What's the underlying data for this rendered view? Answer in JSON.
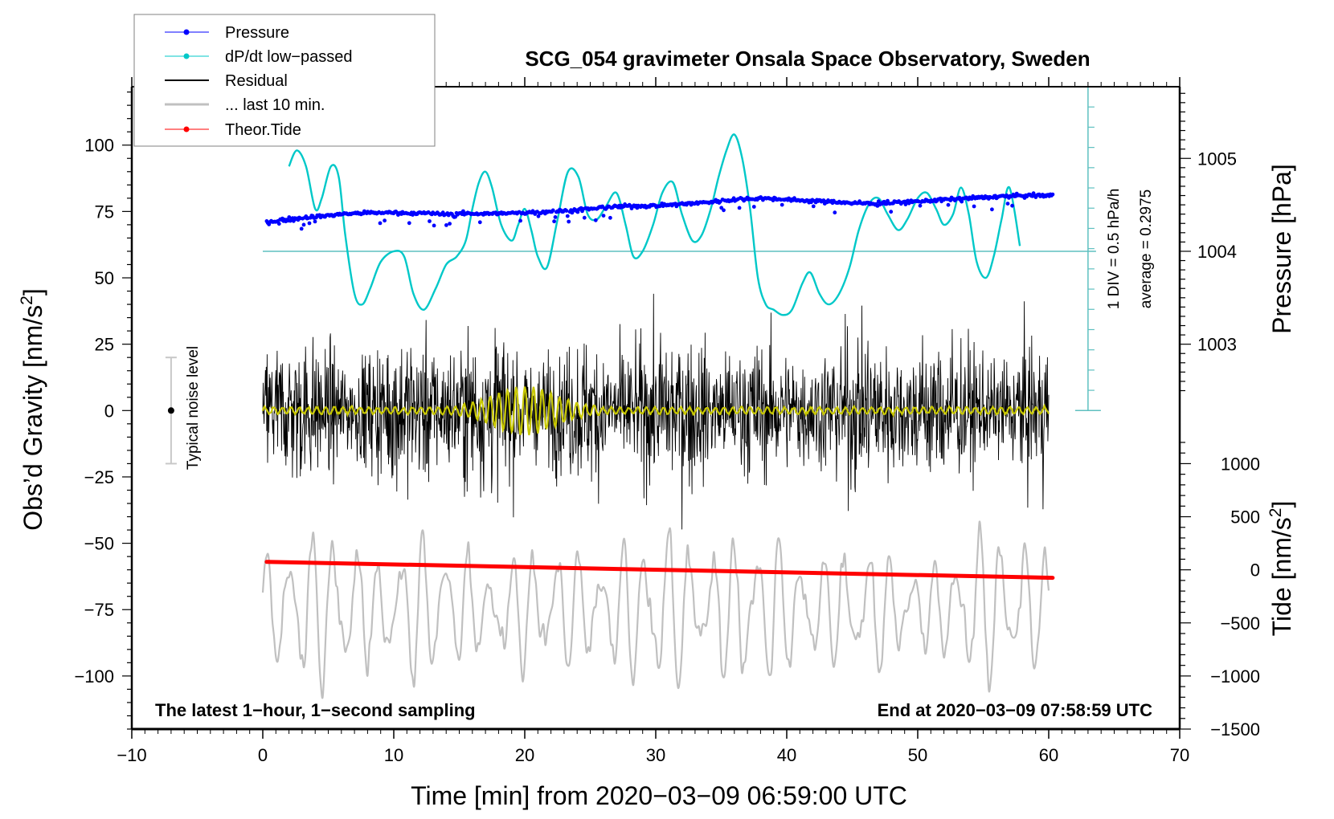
{
  "chart_data": {
    "type": "line",
    "title": "SCG_054 gravimeter Onsala Space Observatory, Sweden",
    "xlabel": "Time [min] from 2020−03−09 06:59:00 UTC",
    "ylabel_left": "Obs’d Gravity [nm/s²]",
    "ylabel_left_base": "Obs’d Gravity [nm/s",
    "ylabel_left_sup": "2",
    "ylabel_left_tail": "]",
    "ylabel_right_pressure": "Pressure [hPa]",
    "ylabel_right_tide_base": "Tide [nm/s",
    "ylabel_right_tide_sup": "2",
    "ylabel_right_tide_tail": "]",
    "xlim": [
      -10,
      70
    ],
    "ylim_left": [
      -120,
      122
    ],
    "x_ticks": [
      -10,
      0,
      10,
      20,
      30,
      40,
      50,
      60,
      70
    ],
    "x_tick_labels": [
      "−10",
      "0",
      "10",
      "20",
      "30",
      "40",
      "50",
      "60",
      "70"
    ],
    "y_ticks_left": [
      100,
      75,
      50,
      25,
      0,
      -25,
      -50,
      -75,
      -100
    ],
    "y_tick_labels_left": [
      "100",
      "75",
      "50",
      "25",
      "0",
      "−25",
      "−50",
      "−75",
      "−100"
    ],
    "pressure_axis": {
      "ticks": [
        1005,
        1004,
        1003
      ],
      "tick_labels": [
        "1005",
        "1004",
        "1003"
      ],
      "gravity_equivalent": {
        "1005": 95,
        "1004": 60,
        "1003": 30
      }
    },
    "tide_axis": {
      "ticks": [
        1000,
        500,
        0,
        -500,
        -1000,
        -1500
      ],
      "tick_labels": [
        "1000",
        "500",
        "0",
        "−500",
        "−1000",
        "−1500"
      ],
      "gravity_equivalent": {
        "1000": -20,
        "-1500": -120
      }
    },
    "dpdt_scale": {
      "label_div": "1 DIV = 0.5 hPa/h",
      "label_avg": "average = 0.2975",
      "baseline_gravity": 60,
      "top_gravity": 122,
      "bottom_gravity": 0,
      "x_minutes": 63
    },
    "noise_bar": {
      "label": "Typical noise level",
      "x_minutes": -7,
      "center": 0,
      "half_range": 20
    },
    "annotations": {
      "bottom_left": "The latest 1−hour, 1−second sampling",
      "bottom_right": "End at 2020−03−09 07:58:59 UTC"
    },
    "legend": {
      "position": "top-left",
      "entries": [
        {
          "label": "Pressure",
          "color": "#0000ff",
          "marker": true
        },
        {
          "label": "dP/dt low−passed",
          "color": "#00c8c8",
          "marker": true
        },
        {
          "label": "Residual",
          "color": "#000000",
          "marker": false
        },
        {
          "label": "... last 10 min.",
          "color": "#c0c0c0",
          "marker": false
        },
        {
          "label": "Theor.Tide",
          "color": "#ff0000",
          "marker": true
        }
      ]
    },
    "series": [
      {
        "name": "Pressure",
        "color": "#0000ff",
        "units": "gravity-equivalent",
        "x": [
          0.3,
          2,
          4,
          6,
          8,
          10,
          12,
          14,
          16,
          18,
          20,
          22,
          24,
          26,
          28,
          30,
          32,
          34,
          36,
          38,
          40,
          42,
          44,
          46,
          48,
          50,
          52,
          54,
          56,
          58,
          60.3
        ],
        "y": [
          71,
          72,
          73,
          74,
          74.5,
          74.5,
          74.3,
          74,
          74.3,
          74.2,
          74.5,
          75,
          75.5,
          76.5,
          77,
          77.2,
          77.8,
          78.5,
          79.5,
          80,
          79.5,
          79,
          78.5,
          78,
          78.3,
          78.8,
          79.5,
          80,
          80.5,
          81,
          81
        ]
      },
      {
        "name": "dP/dt low−passed",
        "color": "#00c8c8",
        "units": "gravity-equivalent",
        "x": [
          2,
          2.6,
          3.3,
          4,
          4.5,
          5.2,
          5.8,
          6.3,
          7,
          7.6,
          8.2,
          9,
          10,
          10.8,
          11.5,
          12.3,
          13.2,
          14,
          14.8,
          15.5,
          16,
          16.5,
          17,
          17.5,
          18.2,
          19,
          19.5,
          20,
          20.5,
          21,
          21.7,
          22.5,
          23.3,
          24.1,
          24.8,
          25.5,
          26.2,
          27,
          27.7,
          28.3,
          29,
          29.8,
          30.5,
          31.3,
          32,
          32.8,
          33.5,
          34.2,
          34.8,
          35.4,
          36,
          36.6,
          37.2,
          37.8,
          38.4,
          39,
          39.7,
          40.4,
          41.2,
          41.8,
          42.5,
          43.2,
          44,
          44.8,
          45.5,
          46.3,
          47,
          47.7,
          48.5,
          49.2,
          50,
          50.7,
          51.4,
          52,
          52.7,
          53.3,
          53.9,
          54.5,
          55.2,
          55.8,
          56.4,
          57,
          57.8
        ],
        "y": [
          92,
          98,
          92,
          76,
          80,
          92,
          88,
          66,
          44,
          40,
          46,
          56,
          60,
          58,
          44,
          38,
          46,
          55,
          58,
          64,
          76,
          86,
          90,
          84,
          70,
          64,
          70,
          76,
          68,
          58,
          54,
          72,
          90,
          88,
          74,
          72,
          77,
          82,
          70,
          58,
          60,
          70,
          82,
          86,
          74,
          64,
          66,
          76,
          88,
          98,
          104,
          95,
          76,
          50,
          40,
          38,
          36,
          38,
          48,
          52,
          44,
          40,
          44,
          54,
          68,
          78,
          80,
          74,
          68,
          72,
          80,
          82,
          76,
          70,
          74,
          84,
          74,
          56,
          50,
          58,
          72,
          84,
          62
        ]
      },
      {
        "name": "Residual",
        "color": "#000000",
        "units": "nm/s²",
        "x_range": [
          0,
          60
        ],
        "typical_amplitude": 20,
        "max": 51,
        "min": -50
      },
      {
        "name": "Residual low-passed",
        "color": "#c8c800",
        "units": "nm/s²",
        "x_range": [
          0,
          60
        ],
        "typical_amplitude": 2,
        "burst_window_minutes": [
          18,
          22
        ],
        "burst_amplitude": 8
      },
      {
        "name": "... last 10 min.",
        "color": "#c0c0c0",
        "units": "nm/s² (offset)",
        "x_range": [
          0,
          60
        ],
        "center": -75,
        "typical_amplitude": 20,
        "max": -32,
        "min": -123
      },
      {
        "name": "Theor.Tide",
        "color": "#ff0000",
        "units": "nm/s²",
        "x": [
          0.3,
          60.3
        ],
        "y": [
          40,
          -40
        ],
        "y_gravity_equivalent": [
          -57,
          -63
        ]
      }
    ]
  }
}
